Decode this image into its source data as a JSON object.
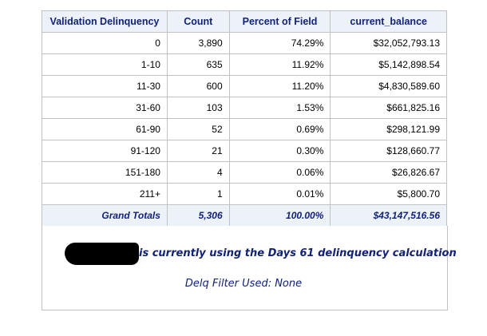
{
  "report": {
    "headers": [
      "Validation Delinquency",
      "Count",
      "Percent of Field",
      "current_balance"
    ],
    "rows": [
      [
        "0",
        "3,890",
        "74.29%",
        "$32,052,793.13"
      ],
      [
        "1-10",
        "635",
        "11.92%",
        "$5,142,898.54"
      ],
      [
        "11-30",
        "600",
        "11.20%",
        "$4,830,589.60"
      ],
      [
        "31-60",
        "103",
        "1.53%",
        "$661,825.16"
      ],
      [
        "61-90",
        "52",
        "0.69%",
        "$298,121.99"
      ],
      [
        "91-120",
        "21",
        "0.30%",
        "$128,660.77"
      ],
      [
        "151-180",
        "4",
        "0.06%",
        "$26,826.67"
      ],
      [
        "211+",
        "1",
        "0.01%",
        "$5,800.70"
      ]
    ],
    "totals": [
      "Grand Totals",
      "5,306",
      "100.00%",
      "$43,147,516.56"
    ]
  },
  "footnotes": {
    "line1": "is currently using the Days 61 delinquency calculation",
    "line2": "Delq Filter Used: None"
  },
  "colors": {
    "header_text": "#112277",
    "header_bg": "#edf2f9",
    "border": "#c1c1c1",
    "redaction": "#000000"
  }
}
